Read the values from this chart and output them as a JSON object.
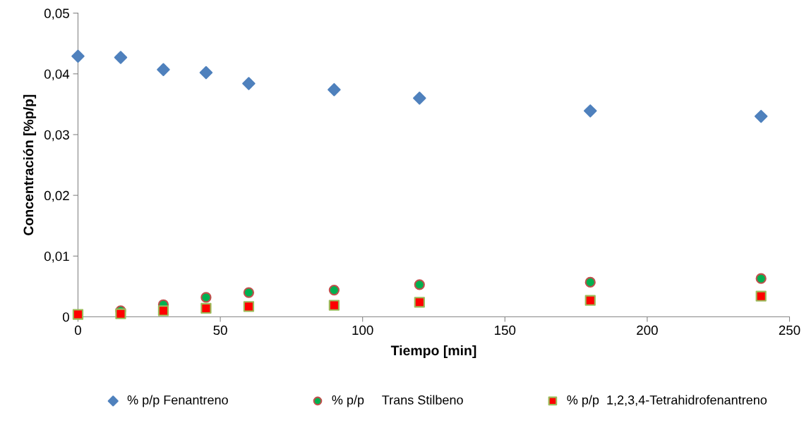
{
  "chart_data": {
    "type": "scatter",
    "xlabel": "Tiempo [min]",
    "ylabel": "Concentración [%p/p]",
    "x": [
      0,
      15,
      30,
      45,
      60,
      90,
      120,
      180,
      240
    ],
    "series": [
      {
        "name": "% p/p Fenantreno",
        "color": "#4f81bd",
        "marker": "diamond",
        "values": [
          0.0429,
          0.0427,
          0.0407,
          0.0402,
          0.0384,
          0.0374,
          0.036,
          0.0339,
          0.033
        ]
      },
      {
        "name": "% p/p     Trans Stilbeno",
        "color": "#00b050",
        "marker": "circle",
        "values": [
          null,
          0.001,
          0.002,
          0.0032,
          0.004,
          0.0044,
          0.0053,
          0.0057,
          0.0063
        ]
      },
      {
        "name": "% p/p  1,2,3,4-Tetrahidrofenantreno",
        "color": "#ff0000",
        "marker": "square",
        "values": [
          0.0004,
          0.0005,
          0.001,
          0.0014,
          0.0017,
          0.0019,
          0.0024,
          0.0027,
          0.0034
        ]
      }
    ],
    "xlim": [
      0,
      250
    ],
    "xticks": [
      0,
      50,
      100,
      150,
      200,
      250
    ],
    "ylim": [
      0,
      0.05
    ],
    "yticks": [
      0,
      {
        "value": 0.01,
        "label": "0,01"
      },
      {
        "value": 0.02,
        "label": "0,02"
      },
      {
        "value": 0.03,
        "label": "0,03"
      },
      {
        "value": 0.04,
        "label": "0,04"
      },
      {
        "value": 0.05,
        "label": "0,05"
      }
    ],
    "grid": false,
    "legend": "bottom"
  }
}
